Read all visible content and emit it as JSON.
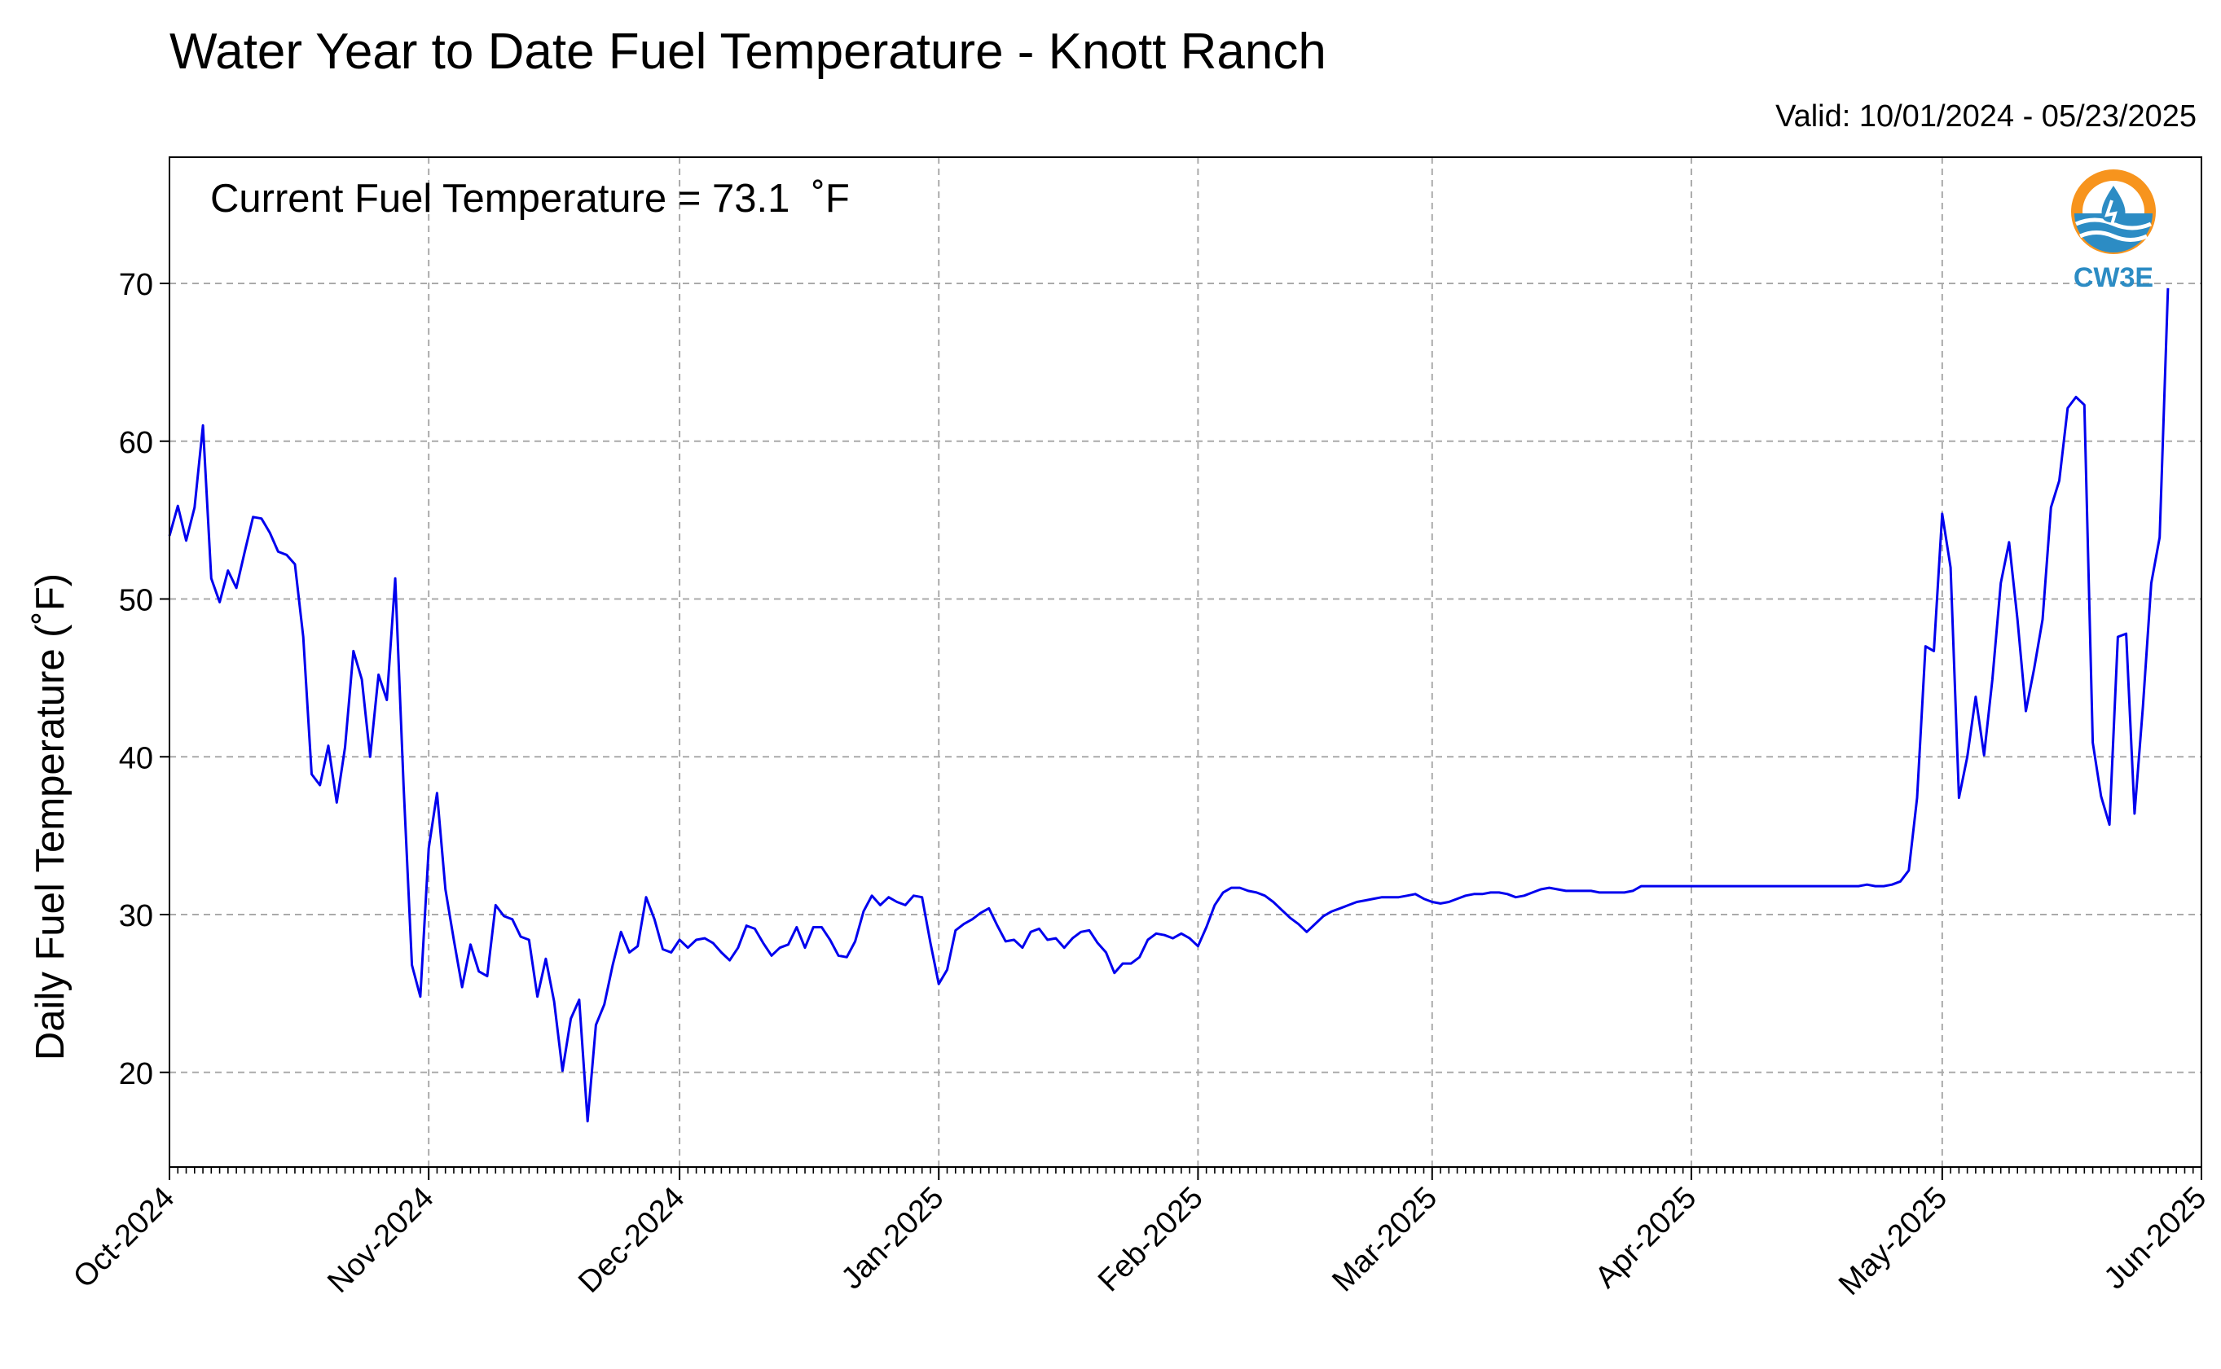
{
  "title": "Water Year to Date Fuel Temperature - Knott Ranch",
  "valid_label": "Valid: 10/01/2024 - 05/23/2025",
  "annotation": "Current Fuel Temperature = 73.1  ˚F",
  "logo": {
    "text": "CW3E",
    "icon": "cw3e-logo-icon",
    "colors": {
      "orange": "#f7941d",
      "blue": "#2c8cc4"
    }
  },
  "chart_data": {
    "type": "line",
    "title": "Water Year to Date Fuel Temperature - Knott Ranch",
    "xlabel": "",
    "ylabel": "Daily Fuel Temperature (˚F)",
    "xlim": [
      "2024-10-01",
      "2025-06-01"
    ],
    "ylim": [
      14,
      78
    ],
    "yticks": [
      20,
      30,
      40,
      50,
      60,
      70
    ],
    "xtick_labels": [
      {
        "date": "2024-10-01",
        "label": "Oct-2024"
      },
      {
        "date": "2024-11-01",
        "label": "Nov-2024"
      },
      {
        "date": "2024-12-01",
        "label": "Dec-2024"
      },
      {
        "date": "2025-01-01",
        "label": "Jan-2025"
      },
      {
        "date": "2025-02-01",
        "label": "Feb-2025"
      },
      {
        "date": "2025-03-01",
        "label": "Mar-2025"
      },
      {
        "date": "2025-04-01",
        "label": "Apr-2025"
      },
      {
        "date": "2025-05-01",
        "label": "May-2025"
      },
      {
        "date": "2025-06-01",
        "label": "Jun-2025"
      }
    ],
    "grid": true,
    "line_color": "#0000ee",
    "series": [
      {
        "start_date": "2024-10-01",
        "step_days": 1,
        "values": [
          54.0,
          55.9,
          53.7,
          55.8,
          61.0,
          51.3,
          49.8,
          51.8,
          50.7,
          53.0,
          55.2,
          55.1,
          54.2,
          53.0,
          52.8,
          52.2,
          47.6,
          38.9,
          38.2,
          40.7,
          37.1,
          40.6,
          46.7,
          44.9,
          40.0,
          45.2,
          43.6,
          51.3,
          38.1,
          26.8,
          24.8,
          34.2,
          37.7,
          31.6,
          28.4,
          25.4,
          28.1,
          26.4,
          26.1,
          30.6,
          29.9,
          29.7,
          28.6,
          28.4,
          24.8,
          27.2,
          24.5,
          20.1,
          23.4,
          24.6,
          16.9,
          23.0,
          24.3,
          26.8,
          28.9,
          27.6,
          28.0,
          31.1,
          29.7,
          27.8,
          27.6,
          28.4,
          27.9,
          28.4,
          28.5,
          28.2,
          27.6,
          27.1,
          27.9,
          29.3,
          29.1,
          28.2,
          27.4,
          27.9,
          28.1,
          29.2,
          27.9,
          29.2,
          29.2,
          28.4,
          27.4,
          27.3,
          28.3,
          30.2,
          31.2,
          30.6,
          31.1,
          30.8,
          30.6,
          31.2,
          31.1,
          28.2,
          25.6,
          26.5,
          29.0,
          29.4,
          29.7,
          30.1,
          30.4,
          29.3,
          28.3,
          28.4,
          27.9,
          28.9,
          29.1,
          28.4,
          28.5,
          27.9,
          28.5,
          28.9,
          29.0,
          28.2,
          27.6,
          26.3,
          26.9,
          26.9,
          27.3,
          28.4,
          28.8,
          28.7,
          28.5,
          28.8,
          28.5,
          28.0,
          29.2,
          30.6,
          31.4,
          31.7,
          31.7,
          31.5,
          31.4,
          31.2,
          30.8,
          30.3,
          29.8,
          29.4,
          28.9,
          29.4,
          29.9,
          30.2,
          30.4,
          30.6,
          30.8,
          30.9,
          31.0,
          31.1,
          31.1,
          31.1,
          31.2,
          31.3,
          31.0,
          30.8,
          30.7,
          30.8,
          31.0,
          31.2,
          31.3,
          31.3,
          31.4,
          31.4,
          31.3,
          31.1,
          31.2,
          31.4,
          31.6,
          31.7,
          31.6,
          31.5,
          31.5,
          31.5,
          31.5,
          31.4,
          31.4,
          31.4,
          31.4,
          31.5,
          31.8,
          31.8,
          31.8,
          31.8,
          31.8,
          31.8,
          31.8,
          31.8,
          31.8,
          31.8,
          31.8,
          31.8,
          31.8,
          31.8,
          31.8,
          31.8,
          31.8,
          31.8,
          31.8,
          31.8,
          31.8,
          31.8,
          31.8,
          31.8,
          31.8,
          31.8,
          31.8,
          31.9,
          31.8,
          31.8,
          31.9,
          32.1,
          32.8,
          37.4,
          47.0,
          46.7,
          55.4,
          52.0,
          37.4,
          40.0,
          43.8,
          40.1,
          44.9,
          51.0,
          53.6,
          48.7,
          42.9,
          45.6,
          48.7,
          55.8,
          57.5,
          62.1,
          62.8,
          62.3,
          40.9,
          37.5,
          35.7,
          47.6,
          47.8,
          36.4,
          43.2,
          51.0,
          53.9,
          69.7
        ]
      }
    ]
  }
}
